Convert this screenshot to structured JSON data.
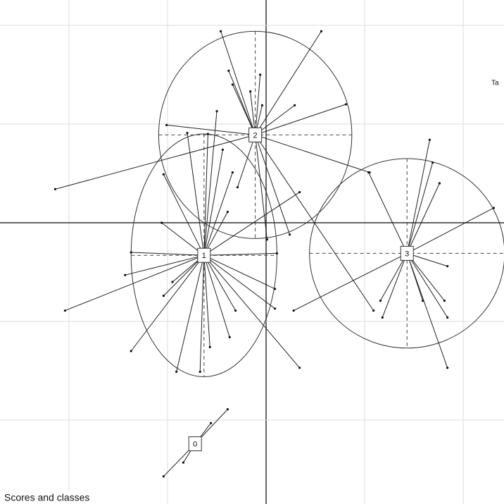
{
  "chart_data": {
    "type": "class_scatter",
    "title": "Scores and classes",
    "annotation": "Ta",
    "xlim": [
      -2.7,
      2.414
    ],
    "ylim": [
      -2.85,
      2.257
    ],
    "xticks": [
      -2,
      -1,
      0,
      1,
      2
    ],
    "yticks": [
      -2,
      -1,
      0,
      1,
      2
    ],
    "grid": true,
    "series": [
      {
        "name": "1",
        "center": [
          -0.63,
          -0.33
        ],
        "ellipse": {
          "rx": 0.74,
          "ry": 1.23
        },
        "x": [
          -2.04,
          -1.37,
          -1.43,
          -1.37,
          -1.06,
          -1.04,
          -0.8,
          -0.59,
          -0.5,
          -0.39,
          -0.34,
          -0.44,
          0.34,
          -1.04,
          -0.91,
          -0.67,
          -0.57,
          -0.37,
          -0.31,
          0.09,
          0.09,
          0.34,
          0.11,
          -0.95
        ],
        "y": [
          -0.89,
          -1.3,
          -0.53,
          -0.3,
          0,
          0.49,
          0.91,
          0.9,
          1.13,
          0.11,
          0.51,
          0.74,
          0.31,
          -0.74,
          -1.51,
          -1.51,
          -1.26,
          -1.16,
          -0.89,
          -0.67,
          -0.87,
          -1.47,
          -0.31,
          -0.6
        ]
      },
      {
        "name": "2",
        "center": [
          -0.11,
          0.89
        ],
        "ellipse": {
          "rx": 0.98,
          "ry": 1.05
        },
        "x": [
          -0.46,
          0.56,
          -0.38,
          -0.34,
          -0.16,
          -0.06,
          -0.04,
          0.29,
          0.81,
          -2.14,
          1.05,
          1.09,
          0.24,
          -0.29,
          0.01,
          -1.01
        ],
        "y": [
          1.94,
          1.94,
          1.54,
          1.4,
          1.33,
          1.5,
          1.19,
          1.19,
          1.2,
          0.34,
          0.51,
          -0.89,
          -0.12,
          0.36,
          -0.17,
          0.99
        ]
      },
      {
        "name": "3",
        "center": [
          1.43,
          -0.31
        ],
        "ellipse": {
          "rx": 0.99,
          "ry": 0.96
        },
        "x": [
          1.66,
          1.69,
          1.76,
          2.31,
          1.84,
          1.81,
          1.84,
          1.16,
          1.18,
          0.28,
          1.04,
          1.59,
          1.84
        ],
        "y": [
          0.84,
          0.61,
          0.4,
          0.15,
          -0.44,
          -0.79,
          -1.47,
          -0.79,
          -0.96,
          -0.89,
          0.51,
          -0.79,
          -0.96
        ]
      },
      {
        "name": "0",
        "center": [
          -0.72,
          -2.24
        ],
        "x": [
          -1.04,
          -0.84,
          -0.56,
          -0.39
        ],
        "y": [
          -2.57,
          -2.43,
          -2.03,
          -1.89
        ]
      }
    ]
  }
}
